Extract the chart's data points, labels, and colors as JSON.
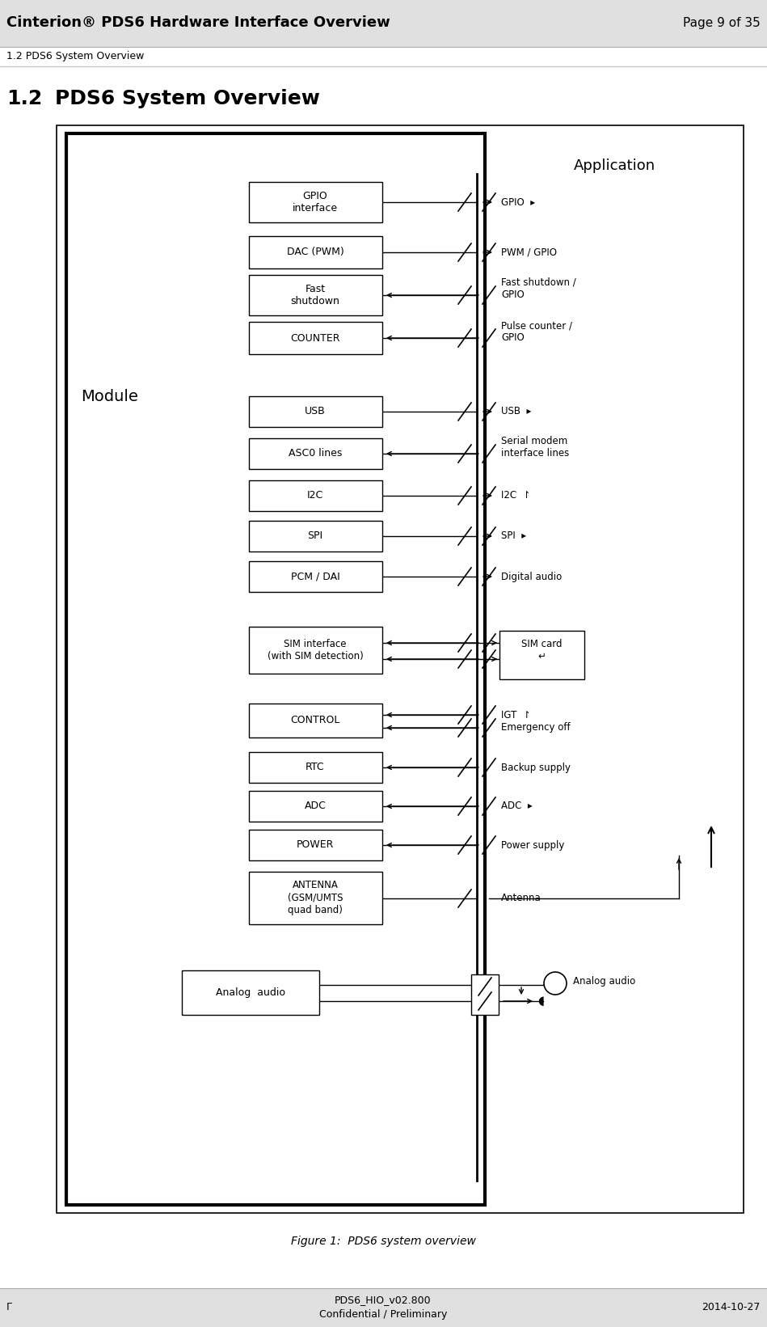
{
  "page_title": "Cinterion® PDS6 Hardware Interface Overview",
  "page_num": "Page 9 of 35",
  "section_ref": "1.2 PDS6 System Overview",
  "section_title": "1.2",
  "section_title2": "PDS6 System Overview",
  "footer_center": "PDS6_HIO_v02.800\nConfidential / Preliminary",
  "footer_right": "2014-10-27",
  "footer_left": "Γ",
  "figure_caption": "Figure 1:  PDS6 system overview",
  "colors": {
    "header_bg": "#e0e0e0",
    "footer_bg": "#e0e0e0",
    "text": "#000000",
    "box_fill": "#ffffff",
    "box_edge": "#000000"
  }
}
